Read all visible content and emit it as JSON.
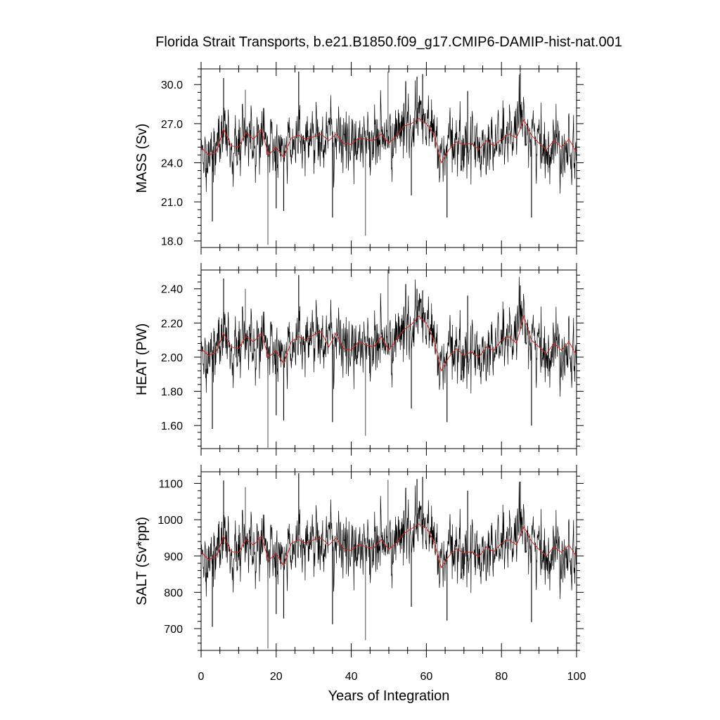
{
  "title": "Florida Strait Transports, b.e21.B1850.f09_g17.CMIP6-DAMIP-hist-nat.001",
  "colors": {
    "raw_series": "#000000",
    "smoothed_series": "#e02020",
    "axis": "#000000"
  },
  "chart_data": [
    {
      "type": "line",
      "ylabel": "MASS (Sv)",
      "xlim": [
        0,
        100
      ],
      "ylim": [
        17.5,
        31.2
      ],
      "yticks": [
        18.0,
        21.0,
        24.0,
        27.0,
        30.0
      ],
      "ytick_labels": [
        "18.0",
        "21.0",
        "24.0",
        "27.0",
        "30.0"
      ],
      "xticks": [
        0,
        20,
        40,
        60,
        80,
        100
      ],
      "grid": false,
      "smooth_anchors": {
        "x": [
          0,
          2,
          4,
          6,
          8,
          10,
          12,
          14,
          16,
          18,
          20,
          22,
          24,
          26,
          28,
          30,
          32,
          34,
          36,
          38,
          40,
          42,
          44,
          46,
          48,
          50,
          52,
          54,
          56,
          58,
          60,
          62,
          64,
          66,
          68,
          70,
          72,
          74,
          76,
          78,
          80,
          82,
          84,
          86,
          88,
          90,
          92,
          94,
          96,
          98,
          100
        ],
        "y": [
          25.2,
          24.6,
          24.8,
          26.6,
          25.3,
          25.2,
          26.3,
          25.8,
          26.6,
          24.6,
          25.2,
          24.4,
          25.9,
          26.1,
          25.8,
          26.0,
          26.2,
          25.7,
          26.2,
          25.5,
          25.4,
          25.9,
          25.8,
          25.7,
          26.2,
          25.5,
          26.0,
          26.8,
          27.0,
          27.4,
          27.0,
          26.2,
          24.0,
          25.0,
          25.6,
          25.4,
          25.5,
          25.0,
          25.7,
          25.3,
          25.8,
          26.2,
          25.9,
          27.3,
          26.1,
          25.5,
          25.0,
          25.7,
          25.2,
          25.8,
          24.8
        ]
      },
      "dips": [
        {
          "x": 3.0,
          "y": 19.5
        },
        {
          "x": 17.8,
          "y": 17.7
        },
        {
          "x": 22.0,
          "y": 20.3
        },
        {
          "x": 35.0,
          "y": 19.8
        },
        {
          "x": 43.8,
          "y": 18.4
        },
        {
          "x": 65.5,
          "y": 19.8
        },
        {
          "x": 88.0,
          "y": 19.8
        },
        {
          "x": 20.0,
          "y": 20.5
        },
        {
          "x": 56.0,
          "y": 21.5
        }
      ],
      "peaks": [
        {
          "x": 6.0,
          "y": 30.5
        },
        {
          "x": 26.0,
          "y": 31.0
        },
        {
          "x": 49.8,
          "y": 31.0
        },
        {
          "x": 57.5,
          "y": 30.6
        },
        {
          "x": 59.0,
          "y": 30.8
        },
        {
          "x": 85.0,
          "y": 30.9
        },
        {
          "x": 11.8,
          "y": 29.6
        },
        {
          "x": 71.0,
          "y": 29.5
        }
      ]
    },
    {
      "type": "line",
      "ylabel": "HEAT (PW)",
      "xlim": [
        0,
        100
      ],
      "ylim": [
        1.465,
        2.51
      ],
      "yticks": [
        1.6,
        1.8,
        2.0,
        2.2,
        2.4
      ],
      "ytick_labels": [
        "1.60",
        "1.80",
        "2.00",
        "2.20",
        "2.40"
      ],
      "xticks": [
        0,
        20,
        40,
        60,
        80,
        100
      ],
      "grid": false,
      "smooth_anchors": {
        "x": [
          0,
          2,
          4,
          6,
          8,
          10,
          12,
          14,
          16,
          18,
          20,
          22,
          24,
          26,
          28,
          30,
          32,
          34,
          36,
          38,
          40,
          42,
          44,
          46,
          48,
          50,
          52,
          54,
          56,
          58,
          60,
          62,
          64,
          66,
          68,
          70,
          72,
          74,
          76,
          78,
          80,
          82,
          84,
          86,
          88,
          90,
          92,
          94,
          96,
          98,
          100
        ],
        "y": [
          2.05,
          2.01,
          2.03,
          2.14,
          2.06,
          2.05,
          2.12,
          2.09,
          2.14,
          2.0,
          2.04,
          1.96,
          2.09,
          2.12,
          2.1,
          2.13,
          2.15,
          2.06,
          2.14,
          2.05,
          2.04,
          2.09,
          2.07,
          2.06,
          2.12,
          2.04,
          2.1,
          2.16,
          2.19,
          2.24,
          2.2,
          2.1,
          1.92,
          2.0,
          2.05,
          2.01,
          2.03,
          2.0,
          2.06,
          2.04,
          2.1,
          2.12,
          2.08,
          2.24,
          2.1,
          2.06,
          2.02,
          2.08,
          2.04,
          2.09,
          2.01
        ]
      },
      "dips": [
        {
          "x": 3.0,
          "y": 1.58
        },
        {
          "x": 17.8,
          "y": 1.47
        },
        {
          "x": 22.0,
          "y": 1.63
        },
        {
          "x": 35.0,
          "y": 1.62
        },
        {
          "x": 43.8,
          "y": 1.54
        },
        {
          "x": 65.5,
          "y": 1.62
        },
        {
          "x": 88.0,
          "y": 1.6
        },
        {
          "x": 20.0,
          "y": 1.66
        },
        {
          "x": 56.0,
          "y": 1.7
        }
      ],
      "peaks": [
        {
          "x": 6.0,
          "y": 2.46
        },
        {
          "x": 26.0,
          "y": 2.48
        },
        {
          "x": 49.8,
          "y": 2.51
        },
        {
          "x": 57.5,
          "y": 2.4
        },
        {
          "x": 59.0,
          "y": 2.39
        },
        {
          "x": 85.0,
          "y": 2.42
        },
        {
          "x": 11.8,
          "y": 2.4
        },
        {
          "x": 71.0,
          "y": 2.36
        }
      ]
    },
    {
      "type": "line",
      "ylabel": "SALT (Sv*ppt)",
      "xlim": [
        0,
        100
      ],
      "ylim": [
        640,
        1132
      ],
      "yticks": [
        700,
        800,
        900,
        1000,
        1100
      ],
      "ytick_labels": [
        "700",
        "800",
        "900",
        "1000",
        "1100"
      ],
      "xticks": [
        0,
        20,
        40,
        60,
        80,
        100
      ],
      "xtick_labels": [
        "0",
        "20",
        "40",
        "60",
        "80",
        "100"
      ],
      "xlabel": "Years of Integration",
      "grid": false,
      "smooth_anchors": {
        "x": [
          0,
          2,
          4,
          6,
          8,
          10,
          12,
          14,
          16,
          18,
          20,
          22,
          24,
          26,
          28,
          30,
          32,
          34,
          36,
          38,
          40,
          42,
          44,
          46,
          48,
          50,
          52,
          54,
          56,
          58,
          60,
          62,
          64,
          66,
          68,
          70,
          72,
          74,
          76,
          78,
          80,
          82,
          84,
          86,
          88,
          90,
          92,
          94,
          96,
          98,
          100
        ],
        "y": [
          912,
          890,
          898,
          955,
          912,
          910,
          945,
          930,
          955,
          888,
          908,
          872,
          935,
          945,
          935,
          945,
          950,
          930,
          950,
          920,
          915,
          932,
          925,
          922,
          945,
          918,
          935,
          962,
          975,
          988,
          978,
          940,
          868,
          900,
          920,
          908,
          912,
          898,
          925,
          912,
          935,
          945,
          930,
          980,
          940,
          918,
          900,
          925,
          910,
          930,
          898
        ]
      },
      "dips": [
        {
          "x": 3.0,
          "y": 705
        },
        {
          "x": 17.8,
          "y": 645
        },
        {
          "x": 22.0,
          "y": 728
        },
        {
          "x": 35.0,
          "y": 712
        },
        {
          "x": 43.8,
          "y": 668
        },
        {
          "x": 65.5,
          "y": 722
        },
        {
          "x": 88.0,
          "y": 718
        },
        {
          "x": 20.0,
          "y": 740
        },
        {
          "x": 56.0,
          "y": 760
        }
      ],
      "peaks": [
        {
          "x": 6.0,
          "y": 1108
        },
        {
          "x": 26.0,
          "y": 1128
        },
        {
          "x": 49.8,
          "y": 1110
        },
        {
          "x": 57.5,
          "y": 1112
        },
        {
          "x": 59.0,
          "y": 1118
        },
        {
          "x": 85.0,
          "y": 1105
        },
        {
          "x": 11.8,
          "y": 1090
        },
        {
          "x": 71.0,
          "y": 1080
        }
      ]
    }
  ]
}
